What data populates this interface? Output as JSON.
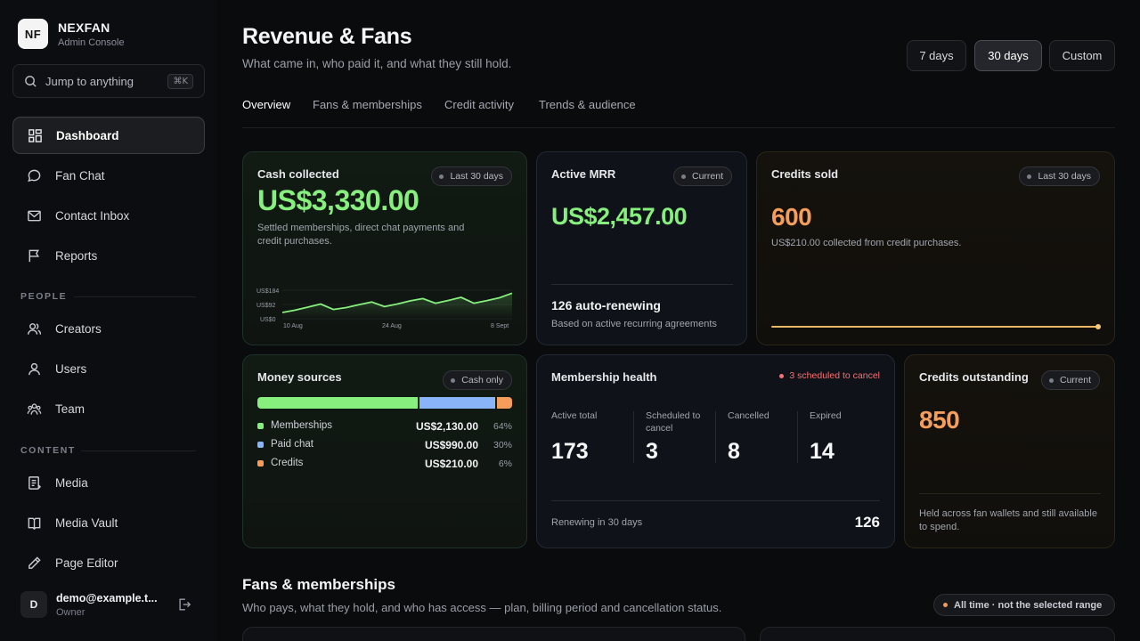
{
  "brand": {
    "logo": "NF",
    "name": "NEXFAN",
    "sub": "Admin Console"
  },
  "search": {
    "placeholder": "Jump to anything",
    "shortcut": "⌘K"
  },
  "nav": {
    "items": [
      {
        "label": "Dashboard",
        "icon": "dashboard-icon"
      },
      {
        "label": "Fan Chat",
        "icon": "chat-bubble-icon"
      },
      {
        "label": "Contact Inbox",
        "icon": "mail-icon"
      },
      {
        "label": "Reports",
        "icon": "flag-icon"
      },
      {
        "label": "Creators",
        "icon": "users-icon"
      },
      {
        "label": "Users",
        "icon": "user-icon"
      },
      {
        "label": "Team",
        "icon": "team-icon"
      },
      {
        "label": "Media",
        "icon": "document-icon"
      },
      {
        "label": "Media Vault",
        "icon": "vault-icon"
      },
      {
        "label": "Page Editor",
        "icon": "pencil-icon"
      }
    ],
    "sections": {
      "people": "PEOPLE",
      "content": "CONTENT"
    }
  },
  "user": {
    "initial": "D",
    "email": "demo@example.t...",
    "role": "Owner"
  },
  "header": {
    "title": "Revenue & Fans",
    "subtitle": "What came in, who paid it, and what they still hold."
  },
  "range": {
    "options": [
      "7 days",
      "30 days",
      "Custom"
    ],
    "selected": "30 days"
  },
  "tabs": [
    "Overview",
    "Fans & memberships",
    "Credit activity",
    "Trends & audience"
  ],
  "cards": {
    "cash": {
      "title": "Cash collected",
      "pill": "Last 30 days",
      "value": "US$3,330.00",
      "desc": "Settled memberships, direct chat payments and credit purchases.",
      "chart": {
        "y_ticks": [
          "US$184",
          "US$92",
          "US$0"
        ],
        "x_ticks": [
          "10 Aug",
          "24 Aug",
          "8 Sept"
        ]
      }
    },
    "mrr": {
      "title": "Active MRR",
      "pill": "Current",
      "value": "US$2,457.00",
      "foot_title": "126 auto-renewing",
      "foot_sub": "Based on active recurring agreements"
    },
    "credits_sold": {
      "title": "Credits sold",
      "pill": "Last 30 days",
      "value": "600",
      "desc": "US$210.00 collected from credit purchases."
    },
    "money": {
      "title": "Money sources",
      "pill": "Cash only",
      "rows": [
        {
          "name": "Memberships",
          "value": "US$2,130.00",
          "pct": "64%",
          "share": 0.64
        },
        {
          "name": "Paid chat",
          "value": "US$990.00",
          "pct": "30%",
          "share": 0.3
        },
        {
          "name": "Credits",
          "value": "US$210.00",
          "pct": "6%",
          "share": 0.06
        }
      ]
    },
    "health": {
      "title": "Membership health",
      "alert": "3 scheduled to cancel",
      "stats": [
        {
          "label": "Active total",
          "value": "173"
        },
        {
          "label": "Scheduled to cancel",
          "value": "3"
        },
        {
          "label": "Cancelled",
          "value": "8"
        },
        {
          "label": "Expired",
          "value": "14"
        }
      ],
      "foot_label": "Renewing in 30 days",
      "foot_value": "126"
    },
    "outstanding": {
      "title": "Credits outstanding",
      "pill": "Current",
      "value": "850",
      "desc": "Held across fan wallets and still available to spend."
    }
  },
  "chart_data": {
    "type": "line",
    "x_ticks": [
      "10 Aug",
      "24 Aug",
      "8 Sept"
    ],
    "y_ticks": [
      "US$0",
      "US$92",
      "US$184"
    ],
    "ylim": [
      0,
      184
    ],
    "values": [
      40,
      55,
      75,
      95,
      60,
      72,
      90,
      108,
      78,
      95,
      115,
      130,
      100,
      118,
      138,
      100,
      116,
      135,
      165
    ]
  },
  "fans_section": {
    "title": "Fans & memberships",
    "subtitle": "Who pays, what they hold, and who has access — plan, billing period and cancellation status.",
    "scope": "All time · not the selected range"
  },
  "colors": {
    "green": "#86ef7d",
    "orange": "#f59e5b",
    "blue": "#8ab4f8",
    "red": "#f87171"
  }
}
